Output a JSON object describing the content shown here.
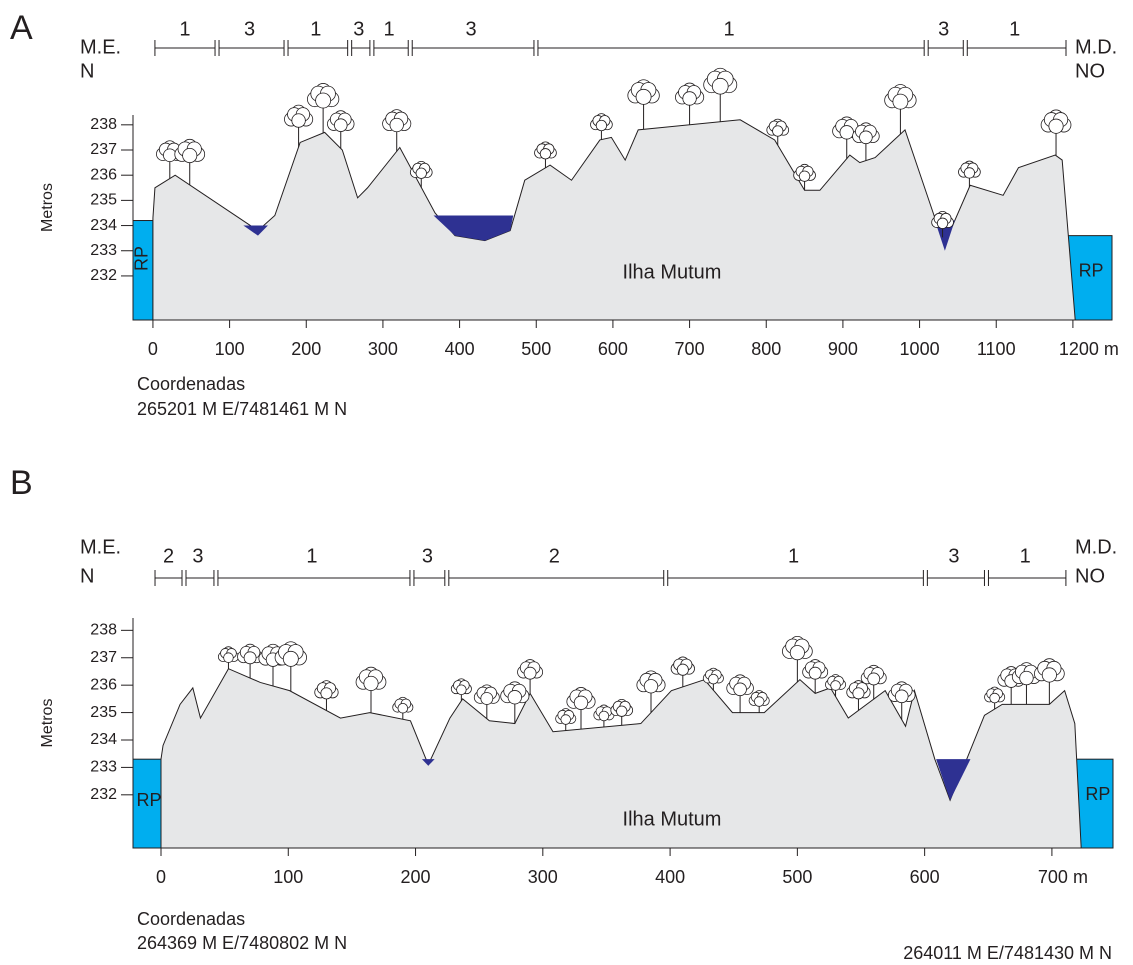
{
  "chart_data": [
    {
      "type": "area",
      "panel": "A",
      "ylabel": "Metros",
      "xlim": [
        -26,
        1251
      ],
      "ylim": [
        230.25,
        238.39
      ],
      "xticks": [
        0,
        100,
        200,
        300,
        400,
        500,
        600,
        700,
        800,
        900,
        1000,
        1100,
        {
          "value": 1200,
          "label": "1200 m"
        }
      ],
      "yticks": [
        232,
        233,
        234,
        235,
        236,
        237,
        238
      ],
      "terrain": {
        "color": "#e6e7e8",
        "x": [
          0,
          2.6,
          29,
          137,
          159,
          192,
          224,
          247,
          267,
          280,
          322,
          368,
          394,
          433,
          466,
          485,
          518,
          546,
          583,
          598,
          616,
          633,
          766,
          811,
          850,
          870,
          909,
          922,
          942,
          981,
          1020,
          1033,
          1066,
          1109,
          1129,
          1177,
          1186,
          1203
        ],
        "values": [
          234.3,
          235.5,
          236.0,
          233.8,
          234.4,
          237.3,
          237.7,
          237.0,
          235.1,
          235.5,
          237.1,
          234.5,
          233.6,
          233.4,
          233.8,
          235.8,
          236.4,
          235.8,
          237.4,
          237.5,
          236.6,
          237.8,
          238.2,
          237.4,
          235.4,
          235.4,
          236.8,
          236.5,
          236.7,
          237.8,
          234.3,
          233.3,
          235.6,
          235.2,
          236.3,
          236.8,
          236.6,
          230.25
        ]
      },
      "water": {
        "color": "#2e3192",
        "pools": [
          {
            "x": [
              118,
              150,
              137
            ],
            "values": [
              234.0,
              234.0,
              233.6
            ]
          },
          {
            "x": [
              366,
              470,
              466,
              433,
              394
            ],
            "values": [
              234.4,
              234.4,
              233.8,
              233.4,
              233.6
            ]
          },
          {
            "x": [
              1020,
              1046,
              1033
            ],
            "values": [
              234.2,
              234.2,
              233.0
            ]
          }
        ]
      },
      "river": {
        "label": "RP",
        "color": "#00aeef",
        "levels": [
          234.2,
          233.6
        ]
      },
      "annotation": "Ilha Mutum",
      "zones": {
        "bounds": [
          2.6,
          81,
          171,
          254,
          283,
          333,
          497,
          1006,
          1057,
          1191
        ],
        "labels": [
          "1",
          "3",
          "1",
          "3",
          "1",
          "3",
          "1",
          "3",
          "1"
        ]
      },
      "left_labels": [
        "M.E.",
        "N"
      ],
      "right_labels": [
        "M.D.",
        "NO"
      ],
      "coordinates": {
        "title": "Coordenadas",
        "start": "265201 M E/7481461 M N"
      }
    },
    {
      "type": "area",
      "panel": "B",
      "ylabel": "Metros",
      "xlim": [
        -22,
        748
      ],
      "ylim": [
        230.06,
        238.45
      ],
      "xticks": [
        0,
        100,
        200,
        300,
        400,
        500,
        600,
        {
          "value": 700,
          "label": "700 m"
        }
      ],
      "yticks": [
        232,
        233,
        234,
        235,
        236,
        237,
        238
      ],
      "terrain": {
        "color": "#e6e7e8",
        "x": [
          0,
          1.6,
          15,
          25,
          31,
          53,
          78,
          101,
          141,
          164,
          196,
          210,
          227,
          237,
          258,
          278,
          290,
          308,
          377,
          401,
          427,
          449,
          474,
          502,
          514,
          526,
          540,
          569,
          585,
          592,
          608,
          620,
          647,
          661,
          698,
          710,
          718,
          723
        ],
        "values": [
          233.3,
          233.8,
          235.3,
          235.9,
          234.8,
          236.6,
          236.1,
          235.8,
          234.8,
          235.0,
          234.7,
          233.1,
          234.8,
          235.5,
          234.7,
          234.6,
          235.7,
          234.3,
          234.6,
          235.8,
          236.2,
          235.0,
          235.0,
          236.2,
          235.7,
          235.9,
          234.8,
          235.8,
          234.5,
          235.8,
          233.3,
          231.8,
          234.9,
          235.3,
          235.3,
          235.8,
          234.6,
          230.06
        ]
      },
      "water": {
        "color": "#2e3192",
        "pools": [
          {
            "x": [
              205,
              215,
              210
            ],
            "values": [
              233.3,
              233.3,
              233.06
            ]
          },
          {
            "x": [
              609,
              636,
              620
            ],
            "values": [
              233.3,
              233.3,
              231.8
            ]
          }
        ]
      },
      "river": {
        "label": "RP",
        "color": "#00aeef",
        "levels": [
          233.3,
          233.3
        ]
      },
      "annotation": "Ilha Mutum",
      "zones": {
        "bounds": [
          -4.7,
          16.5,
          41.6,
          195.6,
          223,
          395,
          599,
          647,
          711
        ],
        "labels": [
          "2",
          "3",
          "1",
          "3",
          "2",
          "1",
          "3",
          "1"
        ]
      },
      "left_labels": [
        "M.E.",
        "N"
      ],
      "right_labels": [
        "M.D.",
        "NO"
      ],
      "coordinates": {
        "title": "Coordenadas",
        "start": "264369 M E/7480802 M N",
        "end": "264011 M E/7481430 M N"
      }
    }
  ]
}
